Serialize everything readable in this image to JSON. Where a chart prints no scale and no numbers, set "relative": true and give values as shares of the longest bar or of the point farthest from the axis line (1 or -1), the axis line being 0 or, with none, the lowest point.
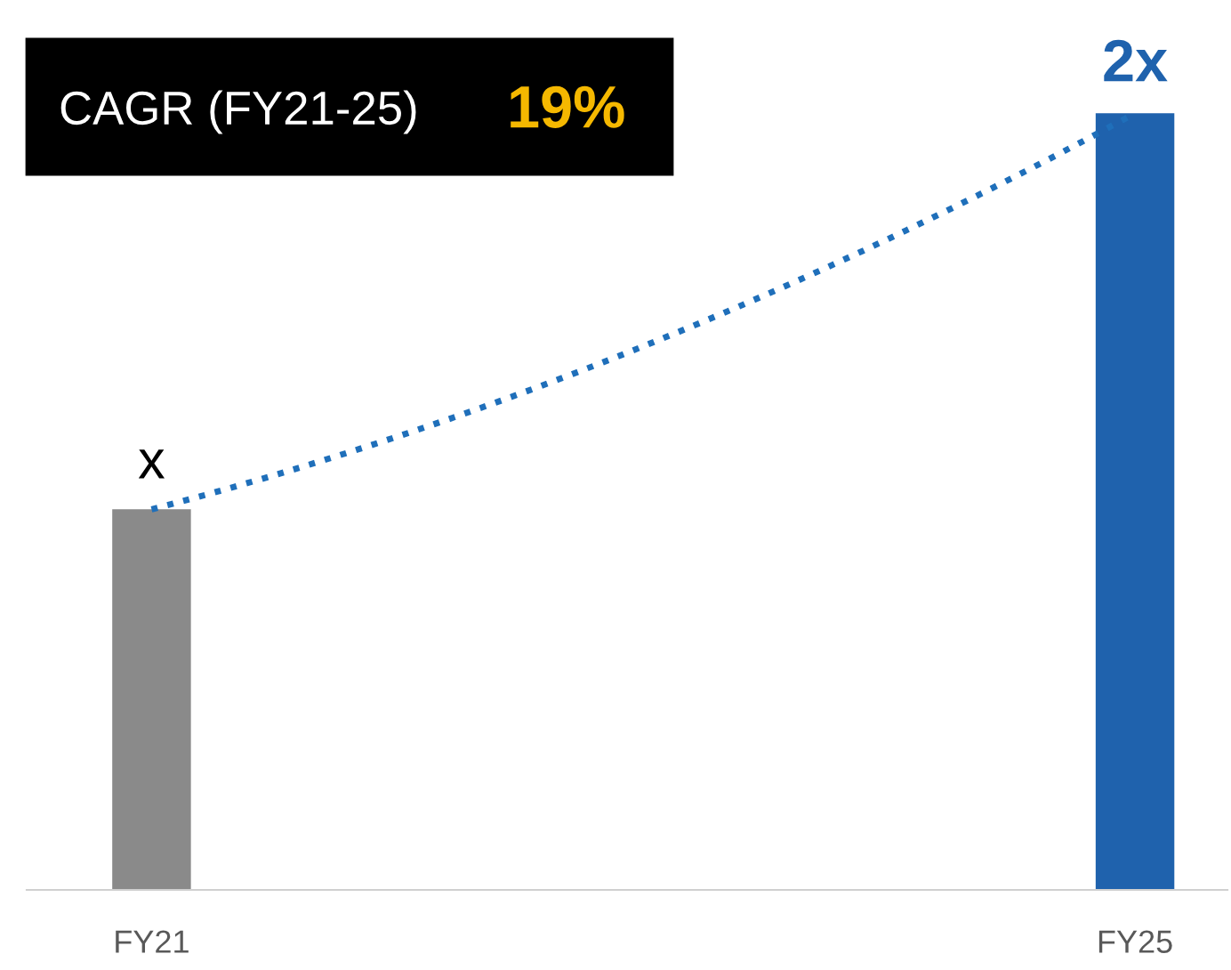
{
  "chart_data": {
    "type": "bar",
    "relative": true,
    "categories": [
      "FY21",
      "FY25"
    ],
    "series": [
      {
        "colors": [
          "#8a8a8a",
          "#1f62ad"
        ],
        "values": [
          0.49,
          1
        ]
      },
      {
        "type": "line",
        "color": "#1f6fba",
        "line_style": "dotted",
        "values": [
          0.49,
          1
        ]
      }
    ],
    "annotations": [
      "CAGR (FY21-25)",
      "19%",
      {
        "text": "x",
        "x": "FY21",
        "y": 0.49
      },
      {
        "text": "2x",
        "x": "FY25",
        "y": 1
      }
    ],
    "grid": false,
    "legend": false
  }
}
